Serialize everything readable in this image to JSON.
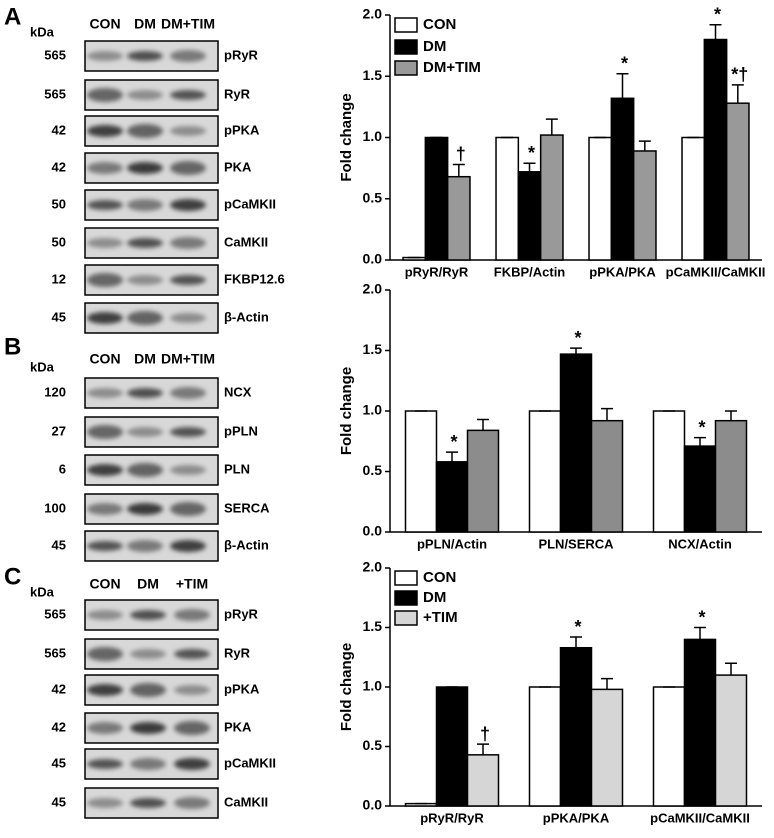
{
  "blots": [
    {
      "letter": "A",
      "kda_label": "kDa",
      "lanes": [
        "CON",
        "DM",
        "DM+TIM"
      ],
      "rows": [
        {
          "kda": 565,
          "label": "pRyR"
        },
        {
          "kda": 565,
          "label": "RyR"
        },
        {
          "kda": 42,
          "label": "pPKA"
        },
        {
          "kda": 42,
          "label": "PKA"
        },
        {
          "kda": 50,
          "label": "pCaMKII"
        },
        {
          "kda": 50,
          "label": "CaMKII"
        },
        {
          "kda": 12,
          "label": "FKBP12.6"
        },
        {
          "kda": 45,
          "label": "β-Actin"
        }
      ]
    },
    {
      "letter": "B",
      "kda_label": "kDa",
      "lanes": [
        "CON",
        "DM",
        "DM+TIM"
      ],
      "rows": [
        {
          "kda": 120,
          "label": "NCX"
        },
        {
          "kda": 27,
          "label": "pPLN"
        },
        {
          "kda": 6,
          "label": "PLN"
        },
        {
          "kda": 100,
          "label": "SERCA"
        },
        {
          "kda": 45,
          "label": "β-Actin"
        }
      ]
    },
    {
      "letter": "C",
      "kda_label": "kDa",
      "lanes": [
        "CON",
        "DM",
        "+TIM"
      ],
      "rows": [
        {
          "kda": 565,
          "label": "pRyR"
        },
        {
          "kda": 565,
          "label": "RyR"
        },
        {
          "kda": 42,
          "label": "pPKA"
        },
        {
          "kda": 42,
          "label": "PKA"
        },
        {
          "kda": 45,
          "label": "pCaMKII"
        },
        {
          "kda": 45,
          "label": "CaMKII"
        }
      ]
    }
  ],
  "chart_data": [
    {
      "type": "bar",
      "ylabel": "Fold change",
      "legend": "upper left",
      "categories": [
        "pRyR/RyR",
        "FKBP/Actin",
        "pPKA/PKA",
        "pCaMKII/CaMKII"
      ],
      "ylim": [
        0,
        2
      ],
      "yticks": [
        {
          "value": 0,
          "label": "0.0"
        },
        {
          "value": 0.5,
          "label": "0.5"
        },
        {
          "value": 1,
          "label": "1.0"
        },
        {
          "value": 1.5,
          "label": "1.5"
        },
        {
          "value": 2,
          "label": "2.0"
        }
      ],
      "series": [
        {
          "name": "CON",
          "color": "#ffffff",
          "values": [
            0.02,
            1.0,
            1.0,
            1.0
          ],
          "errors": [
            0,
            0,
            0,
            0
          ],
          "markers": [
            null,
            null,
            null,
            null
          ]
        },
        {
          "name": "DM",
          "color": "#000000",
          "values": [
            1.0,
            0.72,
            1.32,
            1.8
          ],
          "errors": [
            0,
            0.07,
            0.2,
            0.12
          ],
          "markers": [
            null,
            "*",
            "*",
            "*"
          ]
        },
        {
          "name": "DM+TIM",
          "color": "#999999",
          "values": [
            0.68,
            1.02,
            0.89,
            1.28
          ],
          "errors": [
            0.1,
            0.13,
            0.08,
            0.15
          ],
          "markers": [
            "†",
            null,
            null,
            "*†"
          ]
        }
      ]
    },
    {
      "type": "bar",
      "ylabel": "Fold change",
      "categories": [
        "pPLN/Actin",
        "PLN/SERCA",
        "NCX/Actin"
      ],
      "ylim": [
        0,
        2
      ],
      "yticks": [
        {
          "value": 0,
          "label": "0.0"
        },
        {
          "value": 0.5,
          "label": "0.5"
        },
        {
          "value": 1,
          "label": "1.0"
        },
        {
          "value": 1.5,
          "label": "1.5"
        },
        {
          "value": 2,
          "label": "2.0"
        }
      ],
      "series": [
        {
          "color": "#ffffff",
          "values": [
            1.0,
            1.0,
            1.0
          ],
          "errors": [
            0,
            0,
            0
          ],
          "markers": [
            null,
            null,
            null
          ]
        },
        {
          "color": "#000000",
          "values": [
            0.58,
            1.47,
            0.71
          ],
          "errors": [
            0.08,
            0.05,
            0.07
          ],
          "markers": [
            "*",
            "*",
            "*"
          ]
        },
        {
          "color": "#8c8c8c",
          "values": [
            0.84,
            0.92,
            0.92
          ],
          "errors": [
            0.09,
            0.1,
            0.08
          ],
          "markers": [
            null,
            null,
            null
          ]
        }
      ]
    },
    {
      "type": "bar",
      "ylabel": "Fold change",
      "legend": "upper left",
      "categories": [
        "pRyR/RyR",
        "pPKA/PKA",
        "pCaMKII/CaMKII"
      ],
      "ylim": [
        0,
        2
      ],
      "yticks": [
        {
          "value": 0,
          "label": "0.0"
        },
        {
          "value": 0.5,
          "label": "0.5"
        },
        {
          "value": 1,
          "label": "1.0"
        },
        {
          "value": 1.5,
          "label": "1.5"
        },
        {
          "value": 2,
          "label": "2.0"
        }
      ],
      "series": [
        {
          "name": "CON",
          "color": "#ffffff",
          "values": [
            0.02,
            1.0,
            1.0
          ],
          "errors": [
            0,
            0,
            0
          ],
          "markers": [
            null,
            null,
            null
          ]
        },
        {
          "name": "DM",
          "color": "#000000",
          "values": [
            1.0,
            1.33,
            1.4
          ],
          "errors": [
            0,
            0.09,
            0.1
          ],
          "markers": [
            null,
            "*",
            "*"
          ]
        },
        {
          "name": "+TIM",
          "color": "#d6d6d6",
          "values": [
            0.43,
            0.98,
            1.1
          ],
          "errors": [
            0.09,
            0.09,
            0.1
          ],
          "markers": [
            "†",
            null,
            null
          ]
        }
      ]
    }
  ]
}
